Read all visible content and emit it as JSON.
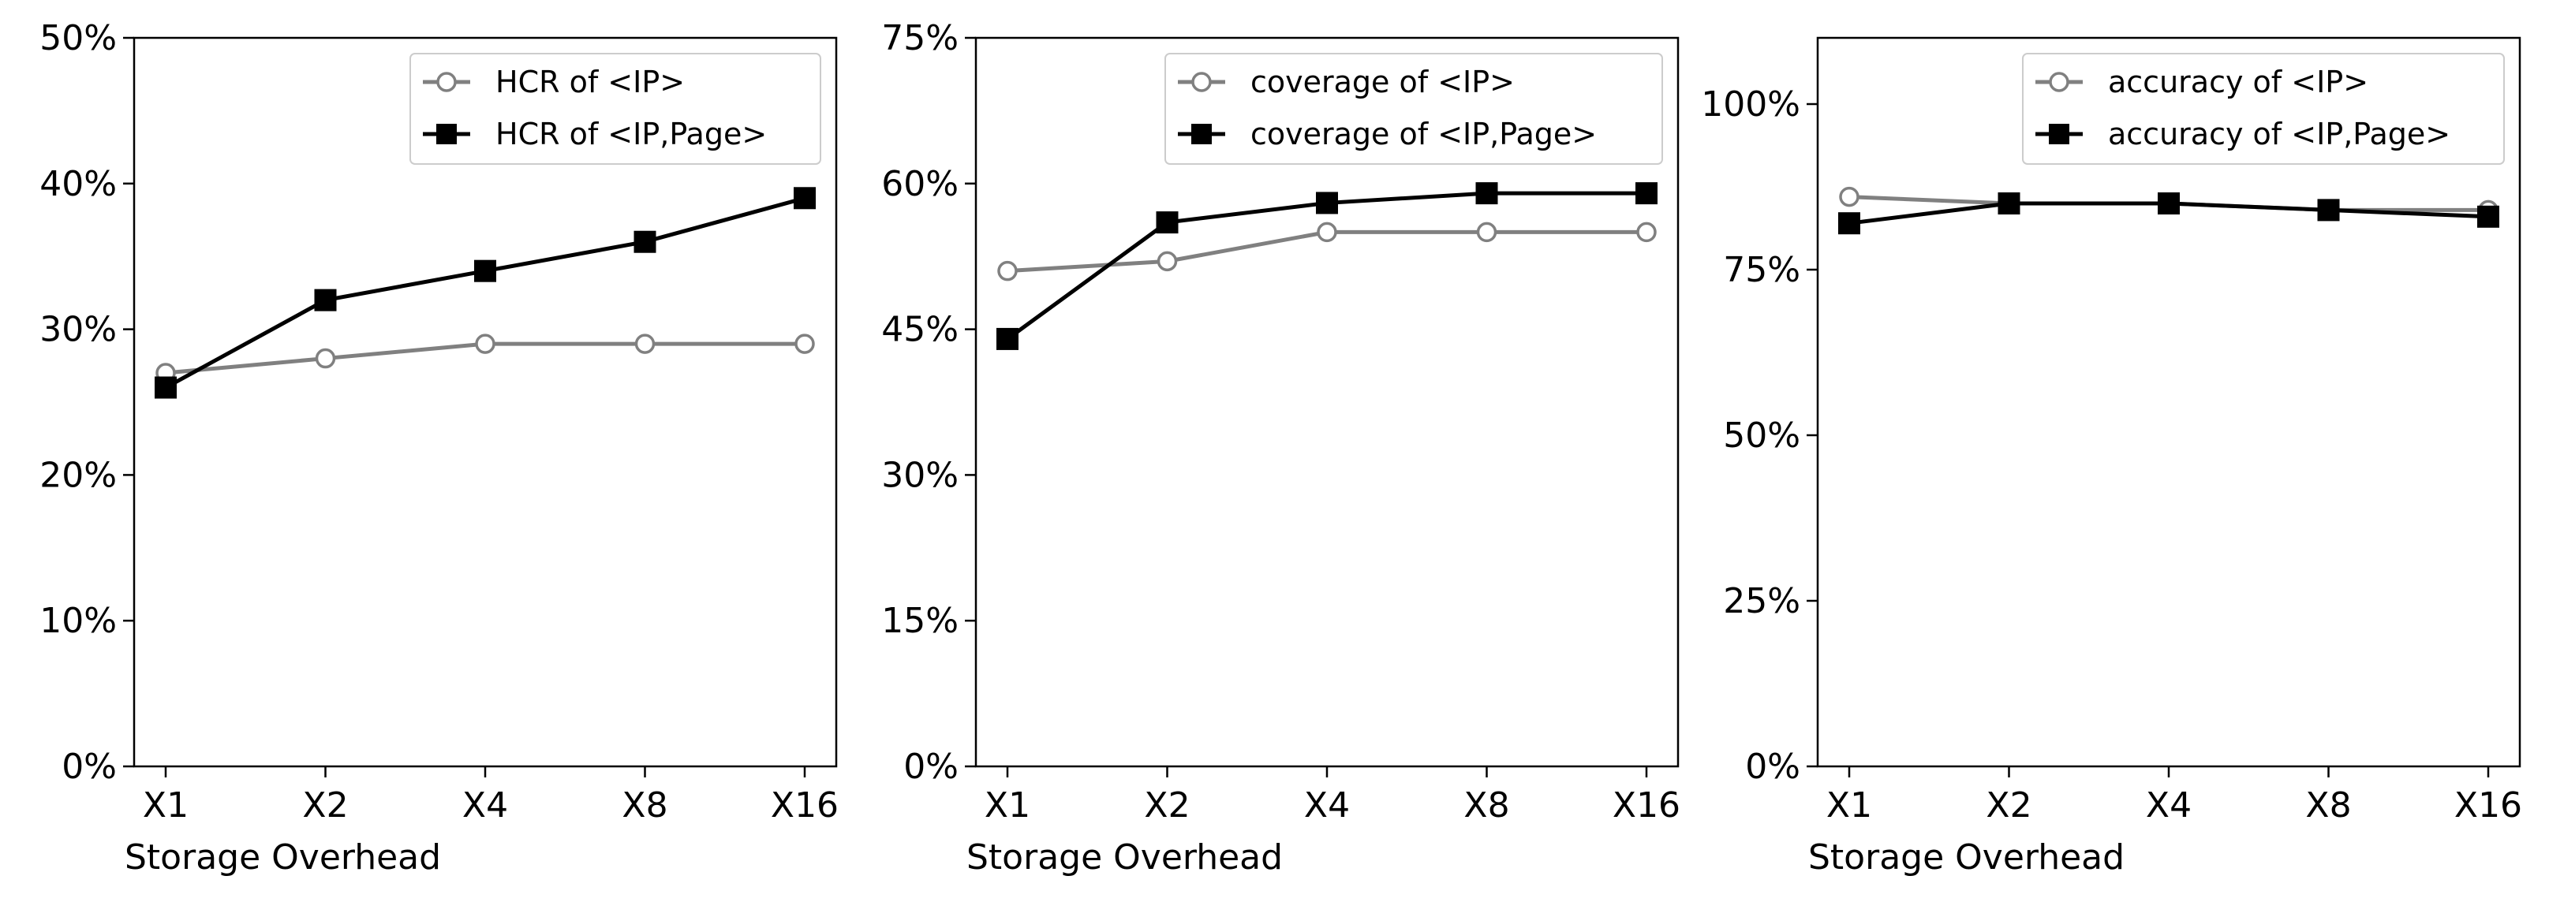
{
  "chart_data": [
    {
      "type": "line",
      "categories": [
        "X1",
        "X2",
        "X4",
        "X8",
        "X16"
      ],
      "xlabel": "Storage Overhead",
      "ylabel": "",
      "ylim": [
        0,
        50
      ],
      "yticks": [
        0,
        10,
        20,
        30,
        40,
        50
      ],
      "yticklabels": [
        "0%",
        "10%",
        "20%",
        "30%",
        "40%",
        "50%"
      ],
      "legend_position": "top-right",
      "series": [
        {
          "name": "HCR of <IP>",
          "values": [
            27,
            28,
            29,
            29,
            29
          ],
          "color": "#808080",
          "marker": "circle-open"
        },
        {
          "name": "HCR of <IP,Page>",
          "values": [
            26,
            32,
            34,
            36,
            39
          ],
          "color": "#000000",
          "marker": "square-filled"
        }
      ]
    },
    {
      "type": "line",
      "categories": [
        "X1",
        "X2",
        "X4",
        "X8",
        "X16"
      ],
      "xlabel": "Storage Overhead",
      "ylabel": "",
      "ylim": [
        0,
        75
      ],
      "yticks": [
        0,
        15,
        30,
        45,
        60,
        75
      ],
      "yticklabels": [
        "0%",
        "15%",
        "30%",
        "45%",
        "60%",
        "75%"
      ],
      "legend_position": "top-right",
      "series": [
        {
          "name": "coverage of <IP>",
          "values": [
            51,
            52,
            55,
            55,
            55
          ],
          "color": "#808080",
          "marker": "circle-open"
        },
        {
          "name": "coverage of <IP,Page>",
          "values": [
            44,
            56,
            58,
            59,
            59
          ],
          "color": "#000000",
          "marker": "square-filled"
        }
      ]
    },
    {
      "type": "line",
      "categories": [
        "X1",
        "X2",
        "X4",
        "X8",
        "X16"
      ],
      "xlabel": "Storage Overhead",
      "ylabel": "",
      "ylim": [
        0,
        110
      ],
      "yticks": [
        0,
        25,
        50,
        75,
        100
      ],
      "yticklabels": [
        "0%",
        "25%",
        "50%",
        "75%",
        "100%"
      ],
      "legend_position": "top-right",
      "series": [
        {
          "name": "accuracy of <IP>",
          "values": [
            86,
            85,
            85,
            84,
            84
          ],
          "color": "#808080",
          "marker": "circle-open"
        },
        {
          "name": "accuracy of <IP,Page>",
          "values": [
            82,
            85,
            85,
            84,
            83
          ],
          "color": "#000000",
          "marker": "square-filled"
        }
      ]
    }
  ]
}
